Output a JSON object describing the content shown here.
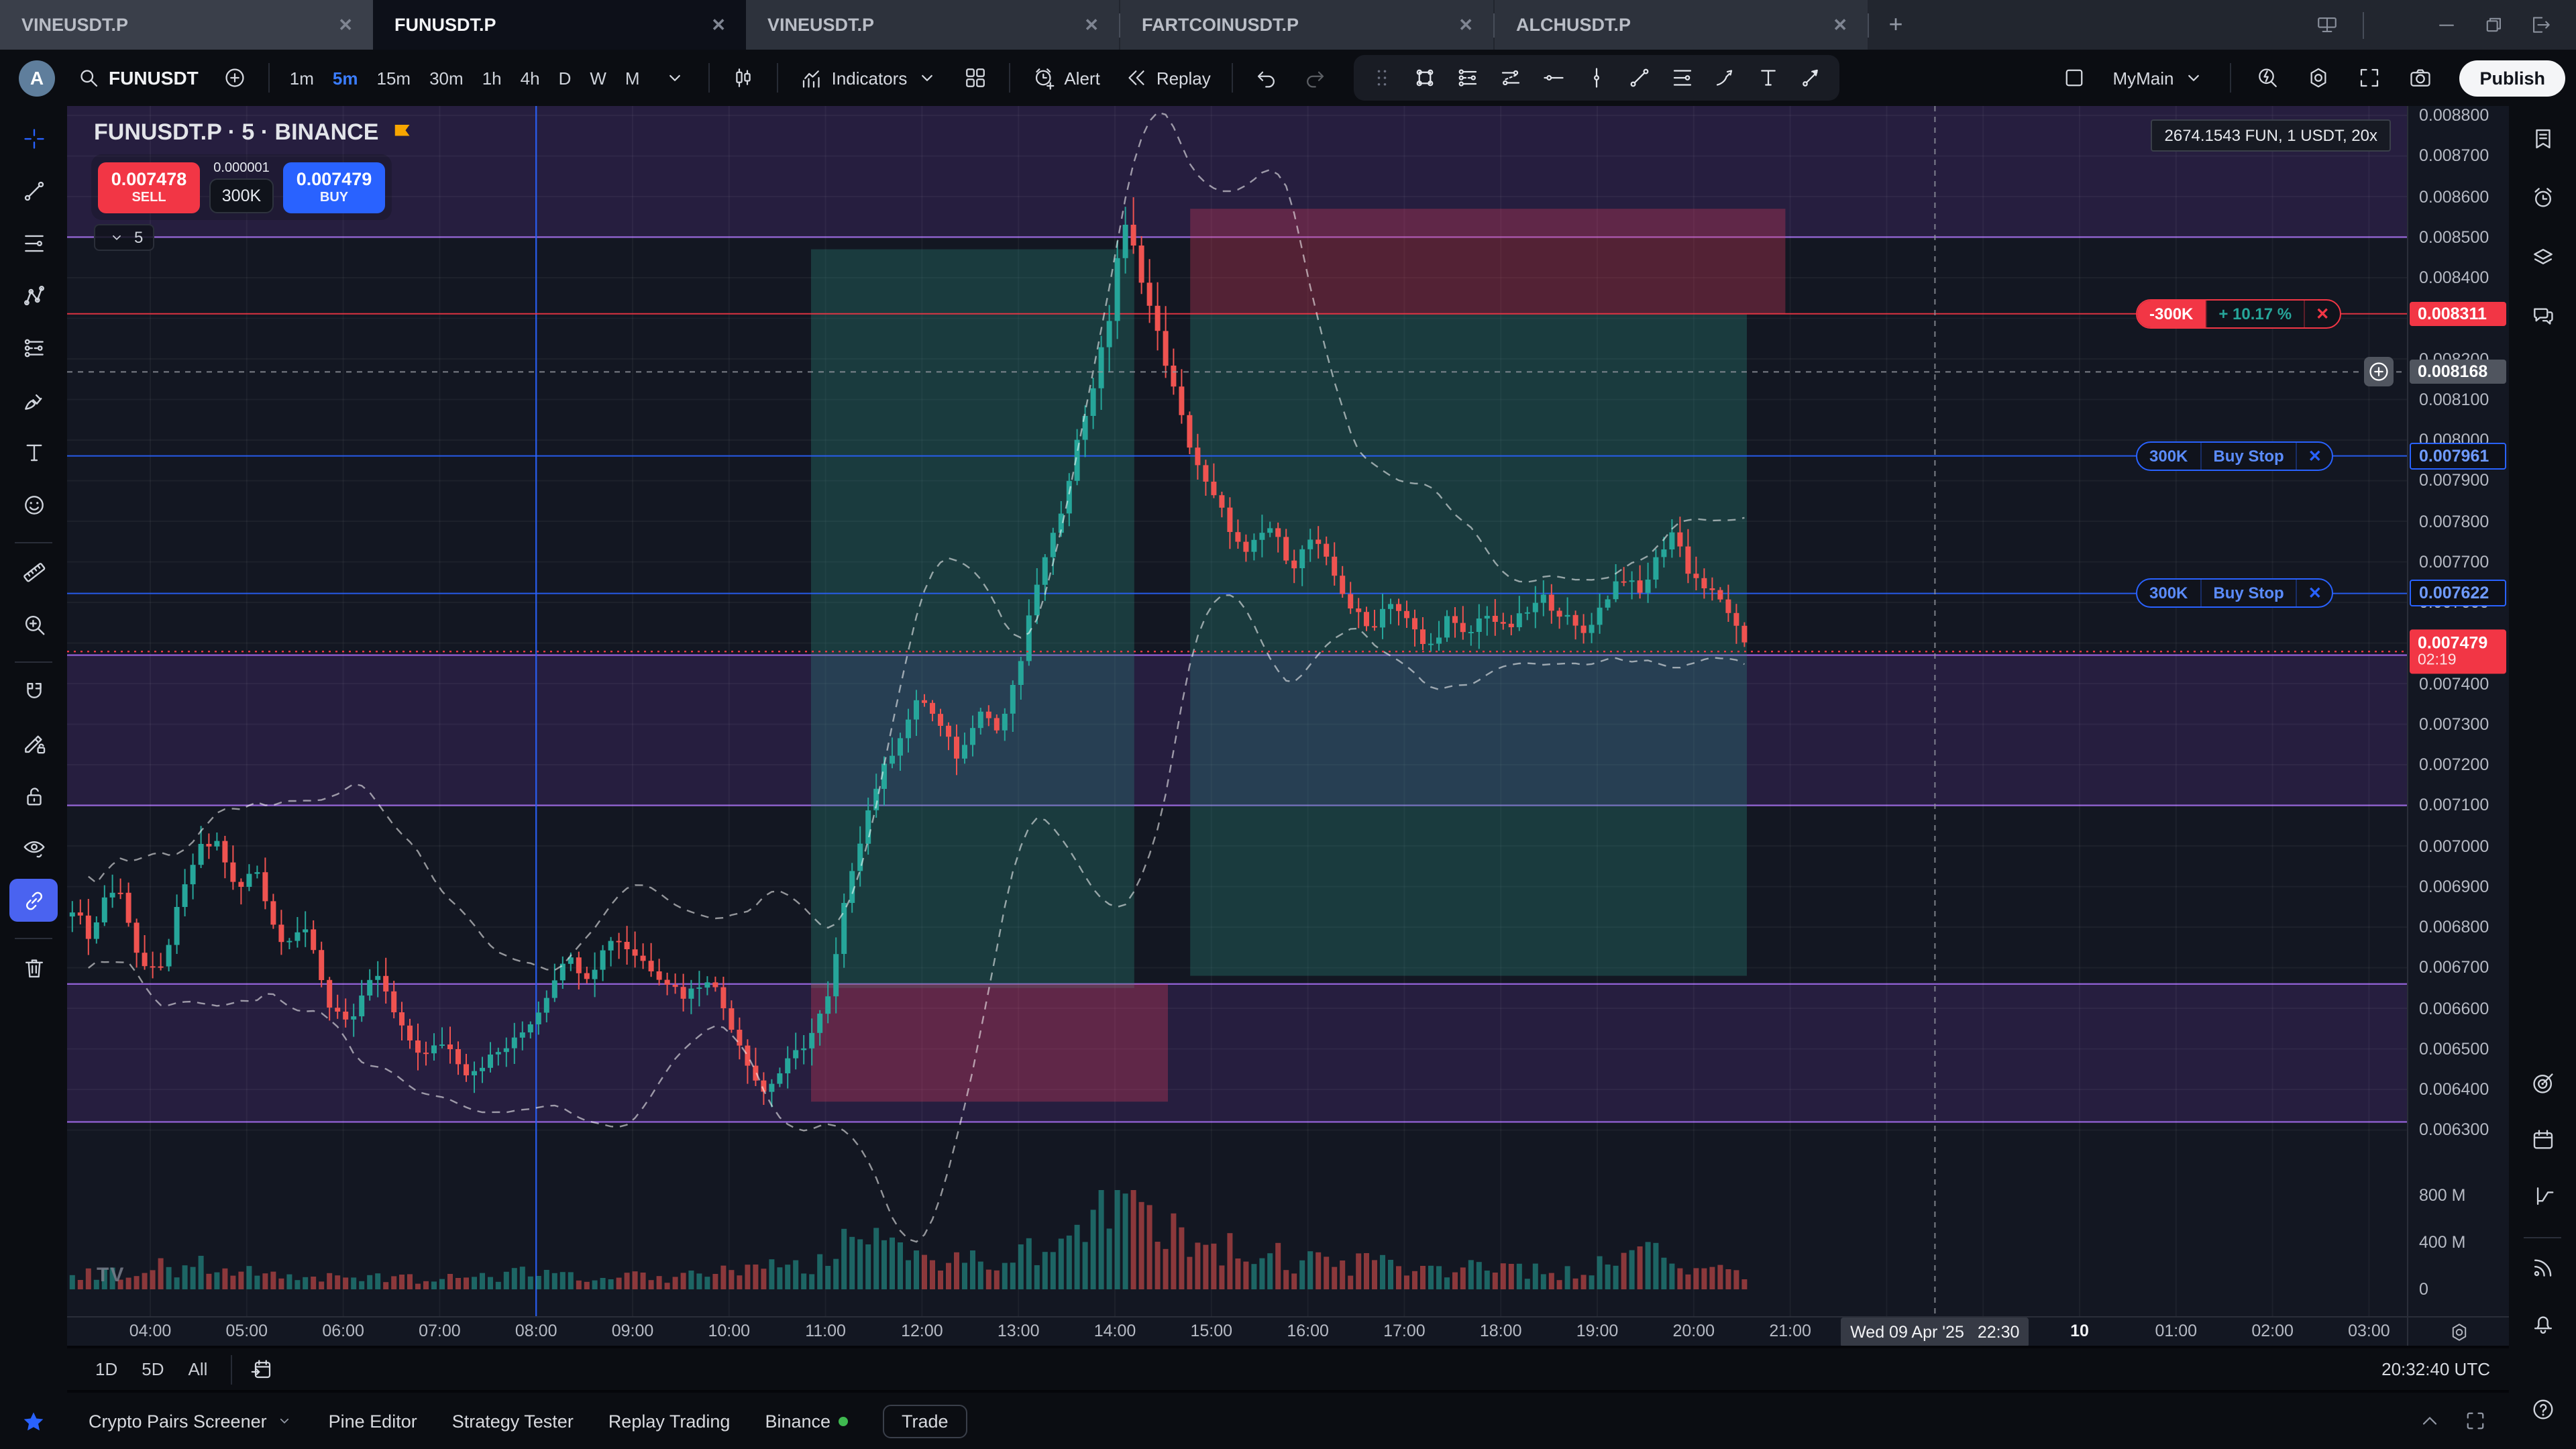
{
  "window": {
    "tabs": [
      {
        "label": "VINEUSDT.P",
        "active": false,
        "first": true
      },
      {
        "label": "FUNUSDT.P",
        "active": true
      },
      {
        "label": "VINEUSDT.P",
        "active": false
      },
      {
        "label": "FARTCOINUSDT.P",
        "active": false
      },
      {
        "label": "ALCHUSDT.P",
        "active": false
      }
    ],
    "add_tab": "+",
    "close_glyph": "✕",
    "controls": [
      {
        "icon": "monitor"
      },
      {
        "icon": "divider"
      },
      {
        "icon": "dots-h"
      },
      {
        "icon": "minimize"
      },
      {
        "icon": "restore"
      },
      {
        "icon": "exit"
      }
    ]
  },
  "toolbar": {
    "avatar_letter": "A",
    "symbol": "FUNUSDT",
    "timeframes": [
      {
        "label": "1m"
      },
      {
        "label": "5m",
        "active": true
      },
      {
        "label": "15m"
      },
      {
        "label": "30m"
      },
      {
        "label": "1h"
      },
      {
        "label": "4h"
      },
      {
        "label": "D"
      },
      {
        "label": "W"
      },
      {
        "label": "M"
      }
    ],
    "indicators_label": "Indicators",
    "alert_label": "Alert",
    "replay_label": "Replay",
    "layout_name": "MyMain",
    "publish_label": "Publish",
    "favorites_tools": [
      "drag-handle-icon",
      "rectangle-tool-icon",
      "disjoint-channel-tool-icon",
      "parallel-channel-tool-icon",
      "horizontal-ray-tool-icon",
      "vertical-line-tool-icon",
      "trend-line-tool-icon",
      "fib-retracement-tool-icon",
      "pitchfork-tool-icon",
      "text-tool-icon",
      "arrow-tool-icon"
    ]
  },
  "left_toolbar": [
    {
      "name": "crosshair-cursor",
      "icon": "crossTool",
      "blue": true
    },
    {
      "name": "trend-line",
      "icon": "trend"
    },
    {
      "name": "fib-retracement",
      "icon": "fib"
    },
    {
      "name": "xabcd-pattern",
      "icon": "xabcd"
    },
    {
      "name": "disjoint-channel",
      "icon": "disjoint"
    },
    {
      "name": "brush",
      "icon": "brush"
    },
    {
      "name": "text",
      "icon": "text"
    },
    {
      "name": "emoji",
      "icon": "smiley"
    },
    {
      "name": "divider"
    },
    {
      "name": "measure",
      "icon": "ruler"
    },
    {
      "name": "zoom-in",
      "icon": "zoomIn"
    },
    {
      "name": "divider"
    },
    {
      "name": "magnet-mode",
      "icon": "magnet"
    },
    {
      "name": "drawing-mode",
      "icon": "pencilLock"
    },
    {
      "name": "lock-all-drawings",
      "icon": "lockOpen"
    },
    {
      "name": "hide-all-drawings",
      "icon": "eyeBrush"
    },
    {
      "name": "sync-drawings",
      "icon": "link",
      "fill": true
    },
    {
      "name": "divider"
    },
    {
      "name": "remove-drawings",
      "icon": "trash"
    }
  ],
  "right_sidebar": {
    "top": [
      {
        "name": "watchlist",
        "icon": "bookmarkList"
      },
      {
        "name": "alerts",
        "icon": "alarm"
      },
      {
        "name": "object-tree",
        "icon": "layers"
      },
      {
        "name": "chat",
        "icon": "chat"
      }
    ],
    "bottom": [
      {
        "name": "hotlists",
        "icon": "target"
      },
      {
        "name": "calendar",
        "icon": "calendar"
      },
      {
        "name": "data-window",
        "icon": "dataWin"
      },
      {
        "name": "divider"
      },
      {
        "name": "streams",
        "icon": "stream"
      },
      {
        "name": "notifications",
        "icon": "bell"
      },
      {
        "name": "help",
        "icon": "help"
      }
    ]
  },
  "chart": {
    "title": "FUNUSDT.P · 5 · BINANCE",
    "trade_panel": {
      "sell_price": "0.007478",
      "sell_label": "SELL",
      "spread": "0.000001",
      "qty": "300K",
      "buy_price": "0.007479",
      "buy_label": "BUY"
    },
    "indicators_collapsed_count": "5",
    "position_tooltip": "2674.1543 FUN, 1 USDT, 20x",
    "watermark": "TV",
    "orders": [
      {
        "qty": "-300K",
        "info": "+ 10.17 %",
        "close": "✕",
        "color": "#f23645",
        "info_color": "#26a69a",
        "price": 0.008311,
        "qty_filled": true,
        "scale_label": "0.008311",
        "scale_style": "red"
      },
      {
        "qty": "300K",
        "info": "Buy Stop",
        "close": "✕",
        "color": "#2962ff",
        "info_color": "#5b8cff",
        "price": 0.007961,
        "qty_filled": false,
        "scale_label": "0.007961",
        "scale_style": "blue"
      },
      {
        "qty": "300K",
        "info": "Buy Stop",
        "close": "✕",
        "color": "#2962ff",
        "info_color": "#5b8cff",
        "price": 0.007622,
        "qty_filled": false,
        "scale_label": "0.007622",
        "scale_style": "blue"
      }
    ],
    "last_price": {
      "price": "0.007479",
      "countdown": "02:19",
      "value": 0.007479
    },
    "crosshair": {
      "t": 22.5,
      "price": 0.008168,
      "price_label": "0.008168",
      "date_label": "Wed 09 Apr '25",
      "time_label": "22:30"
    }
  },
  "chart_data": {
    "type": "candlestick+volume",
    "symbol": "FUNUSDT.P",
    "interval": "5m",
    "exchange": "BINANCE",
    "price_axis": {
      "min": 0.0063,
      "max": 0.0088,
      "step": 0.0001,
      "decimals": 6
    },
    "volume_axis": {
      "ticks": [
        {
          "label": "800 M",
          "v": 800
        },
        {
          "label": "400 M",
          "v": 400
        },
        {
          "label": "0",
          "v": 0
        }
      ]
    },
    "time_axis": {
      "labels": [
        {
          "label": "04:00",
          "t": 4
        },
        {
          "label": "05:00",
          "t": 5
        },
        {
          "label": "06:00",
          "t": 6
        },
        {
          "label": "07:00",
          "t": 7
        },
        {
          "label": "08:00",
          "t": 8
        },
        {
          "label": "09:00",
          "t": 9
        },
        {
          "label": "10:00",
          "t": 10
        },
        {
          "label": "11:00",
          "t": 11
        },
        {
          "label": "12:00",
          "t": 12
        },
        {
          "label": "13:00",
          "t": 13
        },
        {
          "label": "14:00",
          "t": 14
        },
        {
          "label": "15:00",
          "t": 15
        },
        {
          "label": "16:00",
          "t": 16
        },
        {
          "label": "17:00",
          "t": 17
        },
        {
          "label": "18:00",
          "t": 18
        },
        {
          "label": "19:00",
          "t": 19
        },
        {
          "label": "20:00",
          "t": 20
        },
        {
          "label": "21:00",
          "t": 21
        },
        {
          "label": "10",
          "t": 24,
          "bold": true
        },
        {
          "label": "01:00",
          "t": 25
        },
        {
          "label": "02:00",
          "t": 26
        },
        {
          "label": "03:00",
          "t": 27
        }
      ]
    },
    "t_start": 3.15,
    "t_end": 20.5,
    "candles_per_hour": 12,
    "session_vline_t": 8,
    "price_keyframes": [
      [
        3.15,
        0.00685
      ],
      [
        3.35,
        0.00677
      ],
      [
        3.5,
        0.00689
      ],
      [
        3.67,
        0.00688
      ],
      [
        3.85,
        0.00671
      ],
      [
        4.05,
        0.00668
      ],
      [
        4.25,
        0.00685
      ],
      [
        4.45,
        0.00699
      ],
      [
        4.67,
        0.00701
      ],
      [
        4.85,
        0.00688
      ],
      [
        5.05,
        0.00695
      ],
      [
        5.3,
        0.00676
      ],
      [
        5.55,
        0.00681
      ],
      [
        5.8,
        0.00661
      ],
      [
        6.05,
        0.00657
      ],
      [
        6.3,
        0.00669
      ],
      [
        6.55,
        0.00655
      ],
      [
        6.8,
        0.00648
      ],
      [
        7.0,
        0.00652
      ],
      [
        7.25,
        0.00644
      ],
      [
        7.5,
        0.00648
      ],
      [
        7.75,
        0.00652
      ],
      [
        8.0,
        0.0066
      ],
      [
        8.25,
        0.00673
      ],
      [
        8.5,
        0.00668
      ],
      [
        8.75,
        0.00678
      ],
      [
        9.0,
        0.00673
      ],
      [
        9.25,
        0.00668
      ],
      [
        9.5,
        0.00663
      ],
      [
        9.75,
        0.00668
      ],
      [
        10.0,
        0.00655
      ],
      [
        10.3,
        0.00639
      ],
      [
        10.55,
        0.00646
      ],
      [
        10.8,
        0.00653
      ],
      [
        11.0,
        0.00663
      ],
      [
        11.2,
        0.00692
      ],
      [
        11.45,
        0.00713
      ],
      [
        11.7,
        0.00726
      ],
      [
        11.95,
        0.00737
      ],
      [
        12.15,
        0.00729
      ],
      [
        12.35,
        0.00721
      ],
      [
        12.55,
        0.00735
      ],
      [
        12.75,
        0.00728
      ],
      [
        12.95,
        0.00742
      ],
      [
        13.15,
        0.00765
      ],
      [
        13.35,
        0.00778
      ],
      [
        13.55,
        0.00798
      ],
      [
        13.75,
        0.00815
      ],
      [
        13.9,
        0.0083
      ],
      [
        14.0,
        0.00848
      ],
      [
        14.08,
        0.00853
      ],
      [
        14.2,
        0.00843
      ],
      [
        14.35,
        0.0083
      ],
      [
        14.5,
        0.00818
      ],
      [
        14.7,
        0.00801
      ],
      [
        14.9,
        0.00789
      ],
      [
        15.1,
        0.00781
      ],
      [
        15.3,
        0.00771
      ],
      [
        15.55,
        0.00779
      ],
      [
        15.8,
        0.00769
      ],
      [
        16.0,
        0.00776
      ],
      [
        16.2,
        0.00768
      ],
      [
        16.4,
        0.00759
      ],
      [
        16.6,
        0.00753
      ],
      [
        16.8,
        0.00761
      ],
      [
        17.0,
        0.00755
      ],
      [
        17.2,
        0.00748
      ],
      [
        17.4,
        0.00756
      ],
      [
        17.6,
        0.00751
      ],
      [
        17.8,
        0.00758
      ],
      [
        18.0,
        0.00753
      ],
      [
        18.2,
        0.00757
      ],
      [
        18.4,
        0.00761
      ],
      [
        18.6,
        0.00757
      ],
      [
        18.8,
        0.00752
      ],
      [
        19.0,
        0.00759
      ],
      [
        19.2,
        0.00767
      ],
      [
        19.4,
        0.00762
      ],
      [
        19.6,
        0.00772
      ],
      [
        19.75,
        0.00778
      ],
      [
        19.9,
        0.00768
      ],
      [
        20.1,
        0.00763
      ],
      [
        20.3,
        0.00759
      ],
      [
        20.42,
        0.00752
      ],
      [
        20.5,
        0.00748
      ]
    ],
    "volume_keyframes": [
      [
        3.15,
        130
      ],
      [
        3.67,
        140
      ],
      [
        4.2,
        200
      ],
      [
        4.7,
        240
      ],
      [
        5.2,
        130
      ],
      [
        5.8,
        110
      ],
      [
        6.5,
        95
      ],
      [
        7.2,
        90
      ],
      [
        8.0,
        150
      ],
      [
        8.6,
        120
      ],
      [
        9.3,
        105
      ],
      [
        10.0,
        190
      ],
      [
        10.4,
        260
      ],
      [
        10.8,
        230
      ],
      [
        11.2,
        420
      ],
      [
        11.5,
        380
      ],
      [
        11.9,
        320
      ],
      [
        12.3,
        260
      ],
      [
        12.7,
        240
      ],
      [
        13.1,
        340
      ],
      [
        13.5,
        480
      ],
      [
        13.8,
        680
      ],
      [
        14.0,
        860
      ],
      [
        14.15,
        780
      ],
      [
        14.35,
        560
      ],
      [
        14.6,
        470
      ],
      [
        14.9,
        380
      ],
      [
        15.2,
        340
      ],
      [
        15.6,
        280
      ],
      [
        16.0,
        260
      ],
      [
        16.4,
        230
      ],
      [
        16.8,
        210
      ],
      [
        17.2,
        190
      ],
      [
        17.6,
        175
      ],
      [
        18.0,
        160
      ],
      [
        18.4,
        150
      ],
      [
        18.8,
        165
      ],
      [
        19.1,
        220
      ],
      [
        19.4,
        310
      ],
      [
        19.7,
        260
      ],
      [
        20.0,
        170
      ],
      [
        20.3,
        140
      ],
      [
        20.5,
        130
      ]
    ],
    "zones": [
      {
        "name": "long-position-profit",
        "t1": 10.85,
        "t2": 14.2,
        "p1": 0.00665,
        "p2": 0.00847,
        "kind": "profit"
      },
      {
        "name": "long-position-stop",
        "t1": 10.85,
        "t2": 14.55,
        "p1": 0.00637,
        "p2": 0.00666,
        "kind": "loss"
      },
      {
        "name": "short-position-profit",
        "t1": 14.78,
        "t2": 20.55,
        "p1": 0.00668,
        "p2": 0.008311,
        "kind": "profit"
      },
      {
        "name": "short-position-stop",
        "t1": 14.78,
        "t2": 20.95,
        "p1": 0.008311,
        "p2": 0.00857,
        "kind": "loss"
      }
    ],
    "purple_bands": [
      {
        "p1": 0.0085,
        "p2": 0.00885,
        "edges": [
          "bottom"
        ]
      },
      {
        "p1": 0.0071,
        "p2": 0.00747,
        "edges": [
          "top",
          "bottom"
        ]
      },
      {
        "p1": 0.00632,
        "p2": 0.00666,
        "edges": [
          "top",
          "bottom"
        ]
      }
    ],
    "colors": {
      "up": "#26a69a",
      "down": "#ef5350",
      "buy": "#2962ff",
      "sell": "#f23645",
      "zone_profit": "rgba(44,142,130,0.30)",
      "zone_loss": "rgba(220,60,94,0.32)",
      "purple_fill": "rgba(145,70,220,0.16)",
      "purple_line": "#8e5fd0",
      "grid": "rgba(255,255,255,0.045)",
      "band_line": "rgba(255,255,255,0.55)",
      "accent_yellow": "#f7a600"
    }
  },
  "status_row": {
    "ranges": [
      "1D",
      "5D",
      "All"
    ],
    "clock": "20:32:40 UTC"
  },
  "bottom_bar": {
    "items": [
      {
        "label": "Crypto Pairs Screener",
        "chevron": true
      },
      {
        "label": "Pine Editor"
      },
      {
        "label": "Strategy Tester"
      },
      {
        "label": "Replay Trading"
      },
      {
        "label": "Binance",
        "dot": true
      }
    ],
    "trade_label": "Trade"
  }
}
